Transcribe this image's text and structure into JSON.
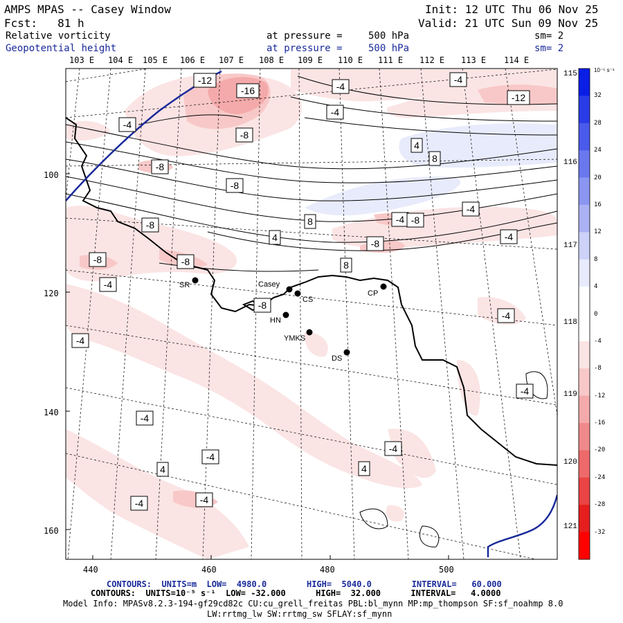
{
  "header": {
    "title": "AMPS MPAS -- Casey Window",
    "init": "Init: 12 UTC Thu 06 Nov 25",
    "fcst": "Fcst:   81 h",
    "valid": "Valid: 21 UTC Sun 09 Nov 25",
    "field1": {
      "name": "Relative vorticity",
      "level_label": "at pressure =",
      "level": "500 hPa",
      "sm": "sm= 2"
    },
    "field2": {
      "name": "Geopotential height",
      "level_label": "at pressure =",
      "level": "500 hPa",
      "sm": "sm= 2"
    }
  },
  "map": {
    "top_lon_labels": [
      "103 E",
      "104 E",
      "105 E",
      "106 E",
      "107 E",
      "108 E",
      "109 E",
      "110 E",
      "111 E",
      "112 E",
      "113 E",
      "114 E"
    ],
    "right_lon_labels": [
      "115 E",
      "116 E",
      "117 E",
      "118 E",
      "119 E",
      "120 E",
      "121 E"
    ],
    "x_ticks": [
      "440",
      "460",
      "480",
      "500"
    ],
    "y_ticks": [
      "100",
      "120",
      "140",
      "160"
    ],
    "stations": [
      {
        "code": "SR"
      },
      {
        "code": "Casey"
      },
      {
        "code": "CS"
      },
      {
        "code": "HN"
      },
      {
        "code": "YMKS"
      },
      {
        "code": "DS"
      },
      {
        "code": "CP"
      }
    ],
    "contour_labels": [
      "-12",
      "-16",
      "-4",
      "-4",
      "-4",
      "-12",
      "-4",
      "-8",
      "4",
      "8",
      "-8",
      "-8",
      "-8",
      "-4",
      "8",
      "4",
      "-8",
      "-4",
      "-8",
      "-4",
      "-8",
      "8",
      "-4",
      "-8",
      "-4",
      "-4",
      "-4",
      "-4",
      "4",
      "-4",
      "4",
      "-4",
      "-4",
      "-4",
      "-8"
    ]
  },
  "colorbar": {
    "units": "10⁻⁵ s⁻¹",
    "labels": [
      "32",
      "28",
      "24",
      "20",
      "16",
      "12",
      "8",
      "4",
      "0",
      "-4",
      "-8",
      "-12",
      "-16",
      "-20",
      "-24",
      "-28",
      "-32"
    ],
    "colors": [
      "#0a1ee6",
      "#2a3ce8",
      "#4a5aea",
      "#6a78ee",
      "#8a96f0",
      "#aab2f4",
      "#ccd2f8",
      "#e8ebfb",
      "#ffffff",
      "#ffffff",
      "#fbe4e4",
      "#f8c8c8",
      "#f4aaaa",
      "#f08a8a",
      "#ee6a6a",
      "#ea4444",
      "#e61e1e",
      "#ff0000"
    ]
  },
  "footer": {
    "line1": "CONTOURS:  UNITS=m  LOW=  4980.0        HIGH=  5040.0        INTERVAL=   60.000",
    "line2": "CONTOURS:  UNITS=10⁻⁵ s⁻¹  LOW= -32.000      HIGH=  32.000      INTERVAL=   4.0000",
    "line3": "Model Info: MPASv8.2.3-194-gf29cd82c CU:cu_grell_freitas PBL:bl_mynn MP:mp_thompson SF:sf_noahmp 8.0",
    "line4": "LW:rrtmg_lw SW:rrtmg_sw SFLAY:sf_mynn"
  }
}
